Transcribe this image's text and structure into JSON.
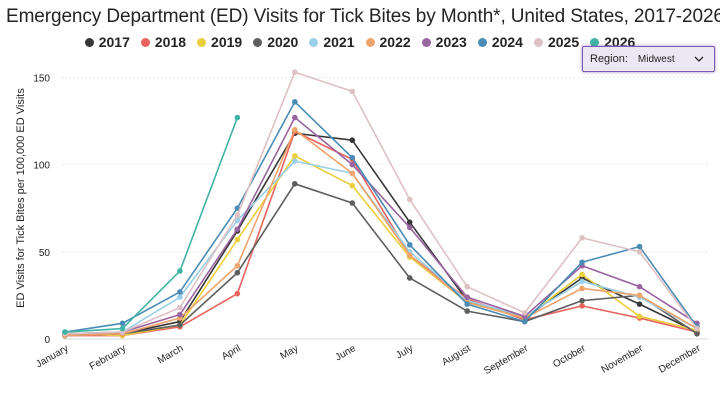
{
  "title": "Emergency Department (ED) Visits for Tick Bites by Month*, United States, 2017-2026",
  "slicer": {
    "label": "Region:",
    "value": "Midwest",
    "icon": "chevron-down-icon"
  },
  "chart_data": {
    "type": "line",
    "title": "Emergency Department (ED) Visits for Tick Bites by Month*, United States, 2017-2026",
    "xlabel": "",
    "ylabel": "ED Visits for Tick Bites per 100,000 ED Visits",
    "ylim": [
      0,
      160
    ],
    "yticks": [
      0,
      50,
      100,
      150
    ],
    "grid": true,
    "legend_position": "top",
    "categories": [
      "January",
      "February",
      "March",
      "April",
      "May",
      "June",
      "July",
      "August",
      "September",
      "October",
      "November",
      "December"
    ],
    "series": [
      {
        "name": "2017",
        "color": "#373737",
        "values": [
          3,
          3,
          10,
          62,
          118,
          114,
          67,
          22,
          12,
          35,
          20,
          4
        ]
      },
      {
        "name": "2018",
        "color": "#e9645e",
        "values": [
          2,
          2,
          7,
          26,
          119,
          103,
          48,
          23,
          11,
          19,
          12,
          4
        ]
      },
      {
        "name": "2019",
        "color": "#ebce3c",
        "values": [
          3,
          2,
          8,
          57,
          105,
          88,
          47,
          21,
          12,
          37,
          13,
          5
        ]
      },
      {
        "name": "2020",
        "color": "#5e5e5e",
        "values": [
          2,
          3,
          8,
          38,
          89,
          78,
          35,
          16,
          10,
          22,
          25,
          3
        ]
      },
      {
        "name": "2021",
        "color": "#9bcfe8",
        "values": [
          3,
          4,
          24,
          68,
          102,
          95,
          50,
          22,
          13,
          33,
          24,
          6
        ]
      },
      {
        "name": "2022",
        "color": "#eea46a",
        "values": [
          2,
          3,
          12,
          42,
          120,
          95,
          48,
          21,
          12,
          29,
          25,
          6
        ]
      },
      {
        "name": "2023",
        "color": "#9a64a0",
        "values": [
          3,
          4,
          14,
          63,
          127,
          100,
          64,
          24,
          13,
          42,
          30,
          9
        ]
      },
      {
        "name": "2024",
        "color": "#4a8cb5",
        "values": [
          4,
          9,
          27,
          75,
          136,
          104,
          54,
          20,
          10,
          44,
          53,
          7
        ]
      },
      {
        "name": "2025",
        "color": "#ddc1c4",
        "values": [
          3,
          4,
          18,
          71,
          153,
          142,
          80,
          30,
          15,
          58,
          50,
          6
        ]
      },
      {
        "name": "2026",
        "color": "#3fb4a4",
        "values": [
          4,
          6,
          39,
          127,
          null,
          null,
          null,
          null,
          null,
          null,
          null,
          null
        ]
      }
    ]
  }
}
